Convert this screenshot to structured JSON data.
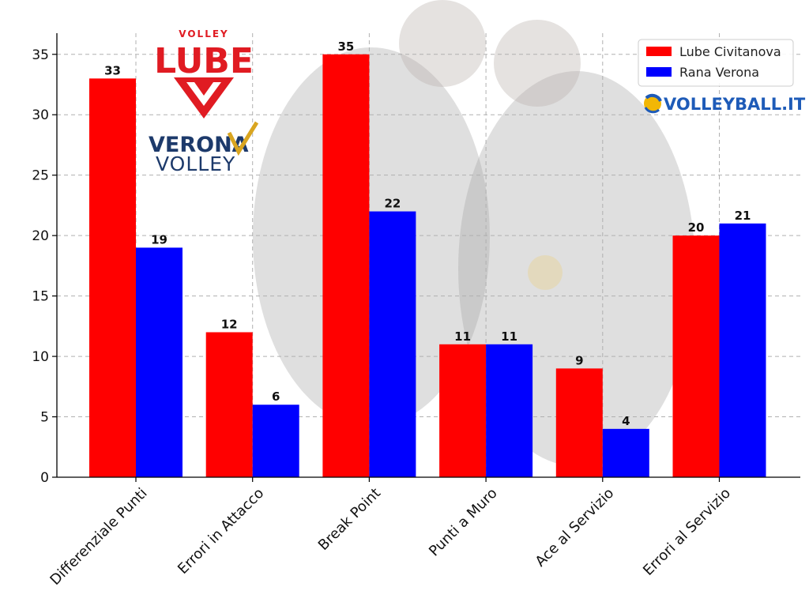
{
  "chart_data": {
    "type": "bar",
    "categories": [
      "Differenziale Punti",
      "Errori in Attacco",
      "Break Point",
      "Punti a Muro",
      "Ace al Servizio",
      "Errori al Servizio"
    ],
    "series": [
      {
        "name": "Lube Civitanova",
        "values": [
          33,
          12,
          35,
          11,
          9,
          20
        ],
        "color": "#ff0000"
      },
      {
        "name": "Rana Verona",
        "values": [
          19,
          6,
          22,
          11,
          4,
          21
        ],
        "color": "#0000ff"
      }
    ],
    "yticks": [
      0,
      5,
      10,
      15,
      20,
      25,
      30,
      35
    ],
    "ylim": [
      0,
      36.75
    ],
    "grid": true,
    "legend_position": "top-right"
  },
  "logos": {
    "lube_top": "VOLLEY",
    "lube_main": "LUBE",
    "verona_top": "VERONA",
    "verona_bottom": "VOLLEY",
    "volleyball_it": "VOLLEYBALL.IT"
  },
  "colors": {
    "lube_red": "#e01b22",
    "verona_navy": "#1d3a6b",
    "verona_gold": "#d9a520"
  }
}
